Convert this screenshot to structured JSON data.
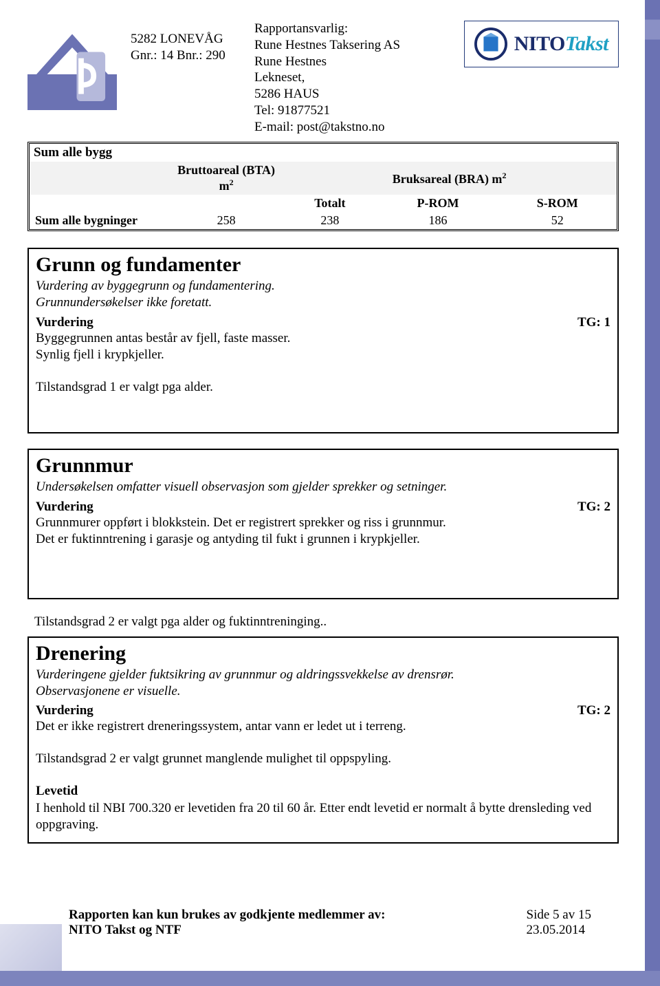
{
  "header": {
    "property_line1": "5282 LONEVÅG",
    "property_line2": "Gnr.: 14 Bnr.: 290",
    "resp_title": "Rapportansvarlig:",
    "resp_company": "Rune Hestnes Taksering AS",
    "resp_name": "Rune Hestnes",
    "resp_addr1": "Lekneset,",
    "resp_addr2": "5286 HAUS",
    "resp_tel": "Tel: 91877521",
    "resp_email": "E-mail: post@takstno.no",
    "logo_colors": {
      "house_fill": "#6b72b3",
      "house_light": "#b5b9db",
      "nito_icon": "#2675c8",
      "nito_dark": "#1a2c6b",
      "nito_teal": "#1fa0c4"
    },
    "nito_text1": "NITO",
    "nito_text2": "Takst"
  },
  "sum": {
    "box_title": "Sum alle bygg",
    "col_bta": "Bruttoareal (BTA) m",
    "col_bra": "Bruksareal (BRA) m",
    "sup": "2",
    "sub_totalt": "Totalt",
    "sub_prom": "P-ROM",
    "sub_srom": "S-ROM",
    "row_label": "Sum alle bygninger",
    "values": {
      "bta": "258",
      "totalt": "238",
      "prom": "186",
      "srom": "52"
    }
  },
  "sections": [
    {
      "title": "Grunn og fundamenter",
      "subtitle": "Vurdering av byggegrunn og fundamentering.\nGrunnundersøkelser ikke foretatt.",
      "vurdering_label": "Vurdering",
      "tg": "TG: 1",
      "body": "Byggegrunnen antas består av fjell, faste masser.\nSynlig fjell i krypkjeller.",
      "after": "Tilstandsgrad 1 er valgt pga alder.",
      "outside": "",
      "levetid_label": "",
      "levetid_text": ""
    },
    {
      "title": "Grunnmur",
      "subtitle": "Undersøkelsen omfatter visuell observasjon som gjelder sprekker og setninger.",
      "vurdering_label": "Vurdering",
      "tg": "TG: 2",
      "body": "Grunnmurer oppført i blokkstein.  Det er registrert sprekker og riss i grunnmur.\nDet er fuktinntrening i garasje og antyding til fukt i grunnen i krypkjeller.",
      "after": "",
      "outside": "Tilstandsgrad 2 er valgt pga alder og fuktinntreninging..",
      "levetid_label": "",
      "levetid_text": ""
    },
    {
      "title": "Drenering",
      "subtitle": "Vurderingene gjelder fuktsikring av grunnmur og aldringssvekkelse av drensrør.\nObservasjonene er visuelle.",
      "vurdering_label": "Vurdering",
      "tg": "TG: 2",
      "body": "Det er ikke registrert dreneringssystem, antar vann er ledet ut i terreng.",
      "after": "Tilstandsgrad 2 er valgt grunnet manglende mulighet til oppspyling.",
      "outside": "",
      "levetid_label": "Levetid",
      "levetid_text": "I henhold til NBI 700.320 er levetiden fra 20 til 60 år. Etter endt levetid er normalt å bytte drensleding ved oppgraving."
    }
  ],
  "footer": {
    "left1": "Rapporten kan kun brukes av godkjente medlemmer av:",
    "left2": "NITO Takst og NTF",
    "page": "Side 5 av 15",
    "date": "23.05.2014"
  }
}
